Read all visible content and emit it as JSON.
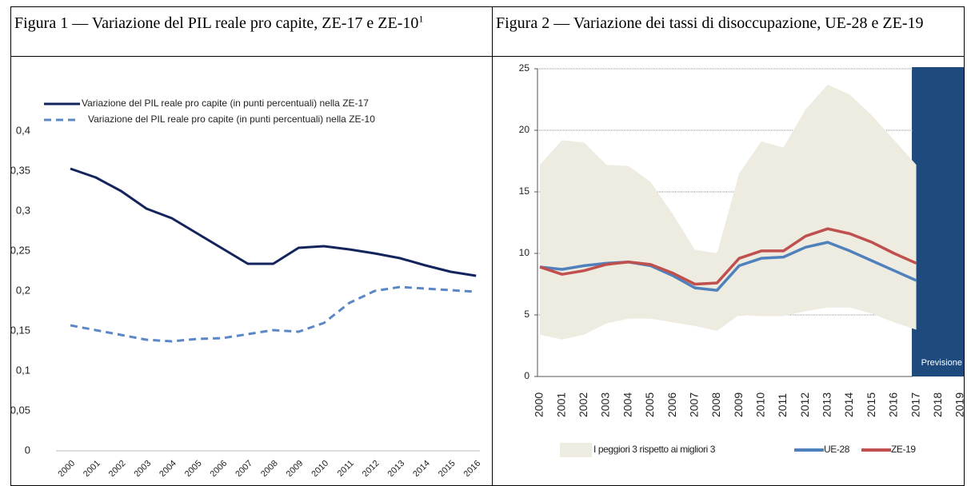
{
  "chart_data": [
    {
      "type": "line",
      "title": "Figura 1 — Variazione del PIL reale pro capite, ZE-17 e ZE-10",
      "title_note": "1",
      "categories": [
        "2000",
        "2001",
        "2002",
        "2003",
        "2004",
        "2005",
        "2006",
        "2007",
        "2008",
        "2009",
        "2010",
        "2011",
        "2012",
        "2013",
        "2014",
        "2015",
        "2016"
      ],
      "series": [
        {
          "name": "Variazione del PIL reale pro capite (in punti percentuali) nella ZE-17",
          "color": "#13245c",
          "dash": false,
          "values": [
            0.353,
            0.342,
            0.325,
            0.303,
            0.291,
            0.272,
            0.253,
            0.234,
            0.234,
            0.254,
            0.256,
            0.252,
            0.247,
            0.241,
            0.232,
            0.224,
            0.219
          ]
        },
        {
          "name": "Variazione del PIL reale pro capite (in punti percentuali) nella ZE-10",
          "color": "#5b87c5",
          "dash": true,
          "values": [
            0.157,
            0.151,
            0.145,
            0.139,
            0.137,
            0.14,
            0.141,
            0.146,
            0.151,
            0.149,
            0.16,
            0.185,
            0.2,
            0.205,
            0.203,
            0.201,
            0.199
          ]
        }
      ],
      "ylim": [
        0,
        0.4
      ],
      "yticks": [
        0,
        {
          "value": 0.05,
          "label": "0,05"
        },
        {
          "value": 0.1,
          "label": "0,1"
        },
        {
          "value": 0.15,
          "label": "0,15"
        },
        {
          "value": 0.2,
          "label": "0,2"
        },
        {
          "value": 0.25,
          "label": "0,25"
        },
        {
          "value": 0.3,
          "label": "0,3"
        },
        {
          "value": 0.35,
          "label": "0,35"
        },
        {
          "value": 0.4,
          "label": "0,4"
        }
      ],
      "grid": false,
      "legend": "top-left"
    },
    {
      "type": "line",
      "title": "Figura 2 — Variazione dei tassi di disoccupazione, UE-28 e ZE-19",
      "categories": [
        "2000",
        "2001",
        "2002",
        "2003",
        "2004",
        "2005",
        "2006",
        "2007",
        "2008",
        "2009",
        "2010",
        "2011",
        "2012",
        "2013",
        "2014",
        "2015",
        "2016",
        "2017",
        "2018",
        "2019"
      ],
      "series": [
        {
          "name": "I peggiori 3 rispetto ai migliori 3",
          "color": "#eeebe1",
          "upper": [
            17.2,
            19.2,
            19.0,
            17.2,
            17.1,
            15.8,
            13.2,
            10.3,
            10.0,
            16.5,
            19.1,
            18.6,
            21.7,
            23.7,
            22.9,
            21.2,
            19.2,
            17.2,
            null,
            null
          ],
          "lower": [
            3.4,
            3.0,
            3.4,
            4.3,
            4.7,
            4.7,
            4.4,
            4.1,
            3.7,
            5.0,
            4.9,
            4.9,
            5.3,
            5.6,
            5.6,
            5.1,
            4.4,
            3.8,
            null,
            null
          ]
        },
        {
          "name": "UE-28",
          "color": "#4f81bd",
          "values": [
            8.9,
            8.7,
            9.0,
            9.2,
            9.3,
            9.0,
            8.2,
            7.2,
            7.0,
            9.0,
            9.6,
            9.7,
            10.5,
            10.9,
            10.2,
            9.4,
            8.6,
            7.8,
            null,
            null
          ]
        },
        {
          "name": "ZE-19",
          "color": "#c0504d",
          "values": [
            8.9,
            8.3,
            8.6,
            9.1,
            9.3,
            9.1,
            8.4,
            7.5,
            7.6,
            9.6,
            10.2,
            10.2,
            11.4,
            12.0,
            11.6,
            10.9,
            10.0,
            9.2,
            null,
            null
          ]
        }
      ],
      "ylim": [
        0,
        25
      ],
      "yticks": [
        0,
        5,
        10,
        15,
        20,
        25
      ],
      "grid": true,
      "legend": "bottom",
      "forecast": {
        "label": "Previsione",
        "from": "2017",
        "color": "#1f4a7d"
      }
    }
  ]
}
